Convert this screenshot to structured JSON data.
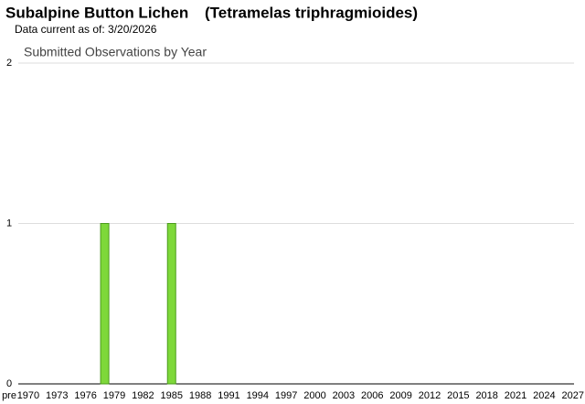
{
  "header": {
    "title": "Subalpine Button Lichen",
    "scientific_name": "(Tetramelas triphragmioides)",
    "subtitle": "Data current as of: 3/20/2026"
  },
  "chart_data": {
    "type": "bar",
    "title": "Submitted Observations by Year",
    "categories": [
      "pre",
      null,
      "1970",
      null,
      null,
      "1973",
      null,
      null,
      "1976",
      null,
      null,
      "1979",
      null,
      null,
      "1982",
      null,
      null,
      "1985",
      null,
      null,
      "1988",
      null,
      null,
      "1991",
      null,
      null,
      "1994",
      null,
      null,
      "1997",
      null,
      null,
      "2000",
      null,
      null,
      "2003",
      null,
      null,
      "2006",
      null,
      null,
      "2009",
      null,
      null,
      "2012",
      null,
      null,
      "2015",
      null,
      null,
      "2018",
      null,
      null,
      "2021",
      null,
      null,
      "2024",
      null,
      null,
      "2027"
    ],
    "values": [
      0,
      0,
      0,
      0,
      0,
      0,
      0,
      0,
      0,
      0,
      1,
      0,
      0,
      0,
      0,
      0,
      0,
      1,
      0,
      0,
      0,
      0,
      0,
      0,
      0,
      0,
      0,
      0,
      0,
      0,
      0,
      0,
      0,
      0,
      0,
      0,
      0,
      0,
      0,
      0,
      0,
      0,
      0,
      0,
      0,
      0,
      0,
      0,
      0,
      0,
      0,
      0,
      0,
      0,
      0,
      0,
      0,
      0,
      0,
      0
    ],
    "color": "#7ed83a",
    "ylim": [
      0,
      2
    ],
    "yticks": [
      0,
      1,
      2
    ],
    "grid": true
  }
}
